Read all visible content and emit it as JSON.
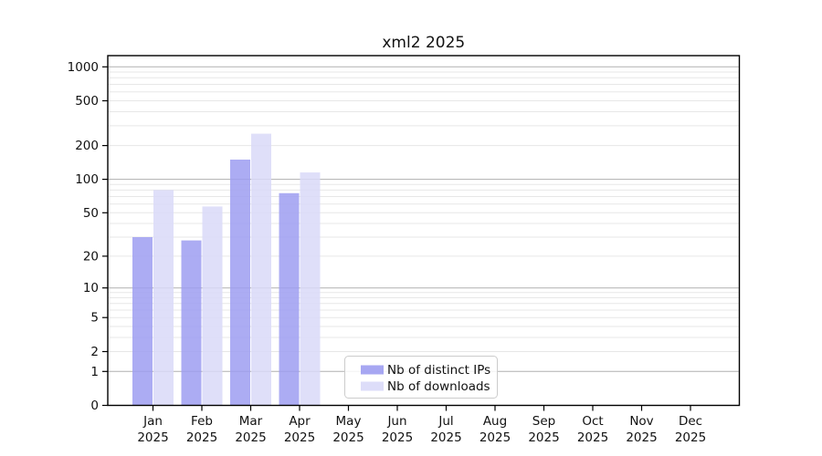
{
  "chart_data": {
    "type": "bar",
    "title": "xml2 2025",
    "year_label": "2025",
    "categories": [
      "Jan",
      "Feb",
      "Mar",
      "Apr",
      "May",
      "Jun",
      "Jul",
      "Aug",
      "Sep",
      "Oct",
      "Nov",
      "Dec"
    ],
    "series": [
      {
        "name": "Nb of distinct IPs",
        "color": "#9d9df1",
        "values": [
          30,
          28,
          150,
          75,
          0,
          0,
          0,
          0,
          0,
          0,
          0,
          0
        ]
      },
      {
        "name": "Nb of downloads",
        "color": "#d9d9f8",
        "values": [
          80,
          57,
          255,
          115,
          0,
          0,
          0,
          0,
          0,
          0,
          0,
          0
        ]
      }
    ],
    "yscale": "log1p",
    "yticks": [
      0,
      1,
      2,
      5,
      10,
      20,
      50,
      100,
      200,
      500,
      1000
    ],
    "ylim": [
      0,
      1200
    ],
    "xlabel": "",
    "ylabel": "",
    "grid": true,
    "legend_position": "bottom-center",
    "colors": {
      "major_grid": "#b0b0b0",
      "minor_grid": "#e7e7e7",
      "axis": "#000000",
      "legend_border": "#cccccc",
      "background": "#ffffff"
    }
  }
}
